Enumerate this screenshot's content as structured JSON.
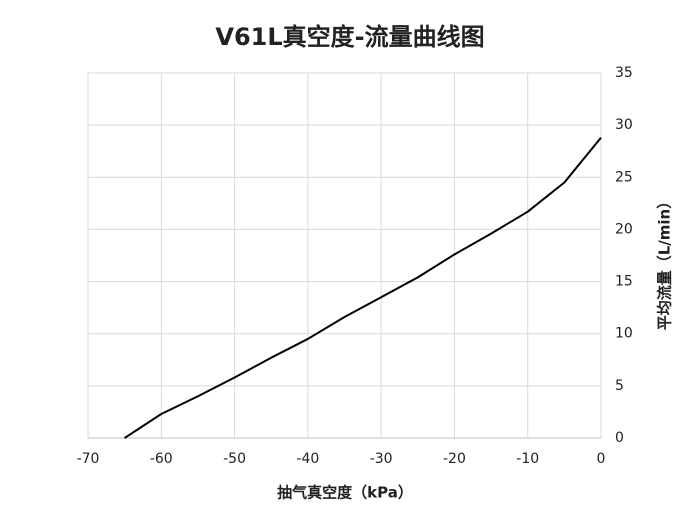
{
  "chart_data": {
    "type": "line",
    "title": "V61L真空度-流量曲线图",
    "x_label": "抽气真空度（kPa）",
    "y_label": "平均流量（L/min）",
    "x": [
      -65,
      -60,
      -55,
      -50,
      -45,
      -40,
      -35,
      -30,
      -25,
      -20,
      -15,
      -10,
      -5,
      0
    ],
    "series": [
      {
        "name": "V61L",
        "color": "#000000",
        "values": [
          0,
          2.3,
          4.0,
          5.8,
          7.7,
          9.5,
          11.6,
          13.5,
          15.4,
          17.6,
          19.6,
          21.7,
          24.5,
          28.8
        ]
      }
    ],
    "xlim": [
      -70,
      0
    ],
    "xticks": [
      -70,
      -60,
      -50,
      -40,
      -30,
      -20,
      -10,
      0
    ],
    "ylim": [
      0,
      35
    ],
    "yticks": [
      0,
      5,
      10,
      15,
      20,
      25,
      30,
      35
    ],
    "grid": true
  }
}
